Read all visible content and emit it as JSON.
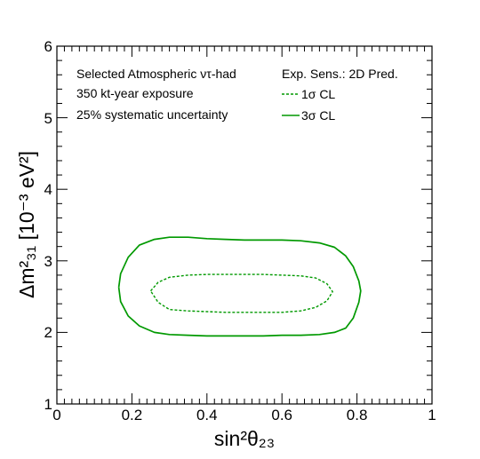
{
  "chart_data": {
    "type": "line",
    "xlabel": "sin²θ₂₃",
    "ylabel": "Δm²₃₁ [10⁻³ eV²]",
    "xlim": [
      0,
      1
    ],
    "ylim": [
      1,
      6
    ],
    "xticks": [
      "0",
      "0.2",
      "0.4",
      "0.6",
      "0.8",
      "1"
    ],
    "yticks": [
      "1",
      "2",
      "3",
      "4",
      "5",
      "6"
    ],
    "grid": false,
    "annotations": [
      "Selected Atmospheric ντ-had",
      "350 kt-year exposure",
      "25% systematic uncertainty"
    ],
    "legend": {
      "title": "Exp. Sens.: 2D Pred.",
      "placement": "top-right",
      "entries": [
        "1σ CL",
        "3σ CL"
      ]
    },
    "colors": {
      "contours": "#009900"
    },
    "series": [
      {
        "name": "1σ CL",
        "style": "dashed",
        "x": [
          0.25,
          0.27,
          0.3,
          0.35,
          0.4,
          0.45,
          0.5,
          0.55,
          0.6,
          0.65,
          0.69,
          0.72,
          0.735,
          0.72,
          0.69,
          0.65,
          0.6,
          0.55,
          0.5,
          0.45,
          0.4,
          0.35,
          0.3,
          0.27,
          0.25
        ],
        "y": [
          2.58,
          2.7,
          2.77,
          2.8,
          2.81,
          2.81,
          2.81,
          2.81,
          2.8,
          2.79,
          2.76,
          2.68,
          2.57,
          2.44,
          2.35,
          2.3,
          2.28,
          2.28,
          2.28,
          2.28,
          2.29,
          2.3,
          2.32,
          2.42,
          2.58
        ]
      },
      {
        "name": "3σ CL",
        "style": "solid",
        "x": [
          0.165,
          0.17,
          0.19,
          0.22,
          0.26,
          0.3,
          0.35,
          0.4,
          0.45,
          0.5,
          0.55,
          0.6,
          0.65,
          0.7,
          0.74,
          0.77,
          0.79,
          0.805,
          0.81,
          0.805,
          0.79,
          0.77,
          0.74,
          0.7,
          0.65,
          0.6,
          0.55,
          0.5,
          0.45,
          0.4,
          0.35,
          0.3,
          0.26,
          0.22,
          0.19,
          0.17,
          0.165
        ],
        "y": [
          2.63,
          2.82,
          3.05,
          3.22,
          3.3,
          3.33,
          3.33,
          3.31,
          3.3,
          3.29,
          3.29,
          3.29,
          3.28,
          3.25,
          3.19,
          3.07,
          2.92,
          2.72,
          2.58,
          2.42,
          2.2,
          2.06,
          2.0,
          1.97,
          1.96,
          1.96,
          1.95,
          1.95,
          1.95,
          1.95,
          1.96,
          1.97,
          2.0,
          2.09,
          2.23,
          2.43,
          2.63
        ]
      }
    ]
  }
}
